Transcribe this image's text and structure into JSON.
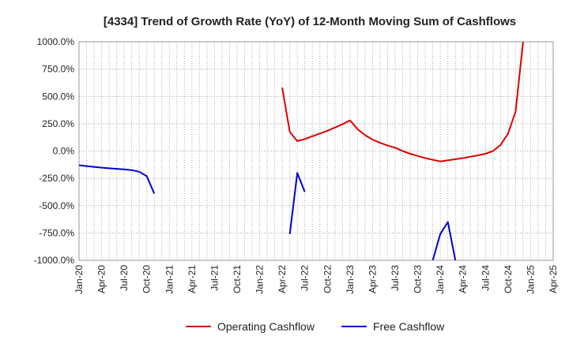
{
  "chart_data": {
    "type": "line",
    "title": "[4334]  Trend of Growth Rate (YoY) of 12-Month Moving Sum of Cashflows",
    "xlabel": "",
    "ylabel": "",
    "x_ticks": [
      "Jan-20",
      "Apr-20",
      "Jul-20",
      "Oct-20",
      "Jan-21",
      "Apr-21",
      "Jul-21",
      "Oct-21",
      "Jan-22",
      "Apr-22",
      "Jul-22",
      "Oct-22",
      "Jan-23",
      "Apr-23",
      "Jul-23",
      "Oct-23",
      "Jan-24",
      "Apr-24",
      "Jul-24",
      "Oct-24",
      "Jan-25",
      "Apr-25"
    ],
    "y_ticks": [
      "1000.0%",
      "750.0%",
      "500.0%",
      "250.0%",
      "0.0%",
      "-250.0%",
      "-500.0%",
      "-750.0%",
      "-1000.0%"
    ],
    "ylim": [
      -1000,
      1000
    ],
    "grid": true,
    "legend_position": "bottom",
    "series": [
      {
        "name": "Operating Cashflow",
        "color": "#dd0000",
        "points": [
          [
            "2022-04",
            580
          ],
          [
            "2022-05",
            175
          ],
          [
            "2022-06",
            90
          ],
          [
            "2022-07",
            110
          ],
          [
            "2022-08",
            135
          ],
          [
            "2022-09",
            160
          ],
          [
            "2022-10",
            185
          ],
          [
            "2022-11",
            215
          ],
          [
            "2022-12",
            245
          ],
          [
            "2023-01",
            280
          ],
          [
            "2023-02",
            200
          ],
          [
            "2023-03",
            145
          ],
          [
            "2023-04",
            105
          ],
          [
            "2023-05",
            75
          ],
          [
            "2023-06",
            50
          ],
          [
            "2023-07",
            30
          ],
          [
            "2023-08",
            0
          ],
          [
            "2023-09",
            -25
          ],
          [
            "2023-10",
            -45
          ],
          [
            "2023-11",
            -65
          ],
          [
            "2023-12",
            -80
          ],
          [
            "2024-01",
            -95
          ],
          [
            "2024-02",
            -85
          ],
          [
            "2024-03",
            -75
          ],
          [
            "2024-04",
            -65
          ],
          [
            "2024-05",
            -52
          ],
          [
            "2024-06",
            -40
          ],
          [
            "2024-07",
            -25
          ],
          [
            "2024-08",
            0
          ],
          [
            "2024-09",
            55
          ],
          [
            "2024-10",
            160
          ],
          [
            "2024-11",
            360
          ],
          [
            "2024-12",
            1000
          ]
        ]
      },
      {
        "name": "Free Cashflow",
        "color": "#0000cc",
        "segments": [
          [
            [
              "2020-01",
              -130
            ],
            [
              "2020-02",
              -138
            ],
            [
              "2020-03",
              -145
            ],
            [
              "2020-04",
              -152
            ],
            [
              "2020-05",
              -158
            ],
            [
              "2020-06",
              -163
            ],
            [
              "2020-07",
              -168
            ],
            [
              "2020-08",
              -175
            ],
            [
              "2020-09",
              -190
            ],
            [
              "2020-10",
              -230
            ],
            [
              "2020-11",
              -390
            ]
          ],
          [
            [
              "2022-05",
              -760
            ],
            [
              "2022-06",
              -200
            ],
            [
              "2022-07",
              -375
            ]
          ],
          [
            [
              "2023-12",
              -1000
            ],
            [
              "2024-01",
              -760
            ],
            [
              "2024-02",
              -650
            ],
            [
              "2024-03",
              -1000
            ]
          ]
        ]
      }
    ]
  }
}
